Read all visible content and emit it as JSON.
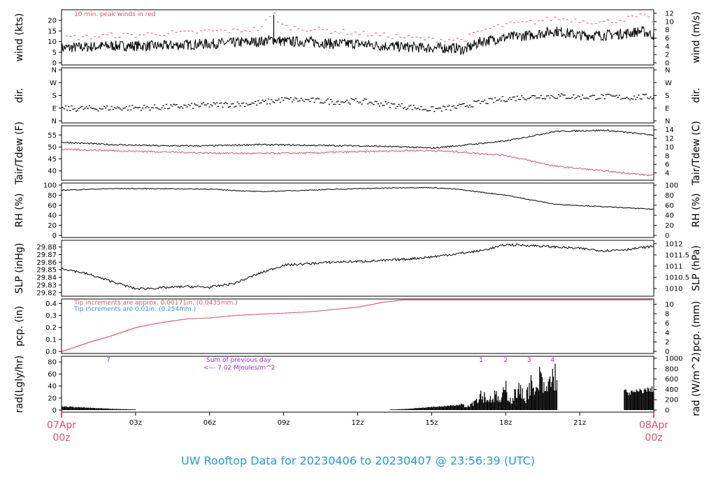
{
  "title": "UW Rooftop Data for 20230406  to  20230407 @ 23:56:39  (UTC)",
  "colors": {
    "red": "#df536b",
    "blue": "#2297e6",
    "purple": "#9933cc",
    "black": "#000000"
  },
  "time_axis": {
    "start_label": [
      "07Apr",
      "00z"
    ],
    "end_label": [
      "08Apr",
      "00z"
    ],
    "ticks": [
      "03z",
      "06z",
      "09z",
      "12z",
      "15z",
      "18z",
      "21z"
    ],
    "range_hours": [
      0,
      24
    ]
  },
  "chart_data": [
    {
      "type": "line",
      "panel": "wind",
      "ylabel_left": "wind (kts)",
      "ylabel_right": "wind (m/s)",
      "yticks_left": [
        "0",
        "5",
        "10",
        "15",
        "20"
      ],
      "yticks_right": [
        "0",
        "2",
        "4",
        "6",
        "8",
        "10",
        "12"
      ],
      "ylim": [
        0,
        24
      ],
      "right_scale_factor": 1.9438,
      "annotation": "10 min. peak winds in red",
      "x_hours": [
        0,
        1,
        2,
        3,
        4,
        5,
        6,
        7,
        8,
        8.6,
        9,
        10,
        11,
        12,
        13,
        14,
        15,
        16,
        16.3,
        17,
        18,
        19,
        20,
        21,
        22,
        23,
        23.5,
        24
      ],
      "series": [
        {
          "values": [
            7,
            7.5,
            8,
            8,
            8,
            8.5,
            9,
            9.5,
            10,
            11,
            10,
            10,
            9,
            9,
            8,
            7.5,
            7,
            7,
            6,
            10,
            12,
            13,
            15,
            13,
            13,
            14,
            15,
            13
          ]
        }
      ],
      "peaks": [
        12,
        12,
        13,
        13,
        14,
        14,
        15,
        15,
        16,
        23,
        17,
        16,
        15,
        14,
        13,
        12,
        11,
        11,
        11,
        15,
        18,
        19,
        21,
        20,
        19,
        21,
        22,
        20
      ]
    },
    {
      "type": "scatter",
      "panel": "dir",
      "ylabel_left": "dir.",
      "ylabel_right": "dir.",
      "yticks_left": [
        "N",
        "E",
        "S",
        "W",
        "N"
      ],
      "yticks_right": [
        "N",
        "E",
        "S",
        "W",
        "N"
      ],
      "ylim": [
        0,
        360
      ],
      "x_hours": [
        0,
        2,
        4,
        6,
        8,
        9,
        10,
        11,
        12,
        13,
        14,
        15,
        16,
        17,
        18,
        19,
        20,
        21,
        22,
        23,
        24
      ],
      "values": [
        85,
        90,
        95,
        110,
        125,
        150,
        145,
        135,
        140,
        120,
        100,
        80,
        95,
        130,
        155,
        170,
        175,
        168,
        170,
        165,
        170
      ]
    },
    {
      "type": "line",
      "panel": "temp",
      "ylabel_left": "Tair/Tdew (F)",
      "ylabel_right": "Tair/Tdew (C)",
      "yticks_left": [
        "40",
        "45",
        "50",
        "55"
      ],
      "yticks_right": [
        "4",
        "6",
        "8",
        "10",
        "12",
        "14"
      ],
      "ylim": [
        37,
        58
      ],
      "x_hours": [
        0,
        2,
        4,
        6,
        8,
        10,
        12,
        14,
        15,
        16,
        18,
        20,
        22,
        24
      ],
      "series": [
        {
          "name": "Tair",
          "color": "black",
          "values": [
            52,
            51,
            50.5,
            50.5,
            51,
            50.7,
            50.5,
            50,
            49.5,
            50.5,
            52.5,
            56.5,
            57,
            55
          ]
        },
        {
          "name": "Tdew",
          "color": "red",
          "values": [
            49,
            48.5,
            48,
            47.5,
            47.3,
            47.5,
            48,
            48.5,
            48.5,
            48,
            46.5,
            42,
            40,
            38
          ]
        }
      ]
    },
    {
      "type": "line",
      "panel": "rh",
      "ylabel_left": "RH (%)",
      "ylabel_right": "RH (%)",
      "yticks_left": [
        "0",
        "20",
        "40",
        "60",
        "80",
        "100"
      ],
      "yticks_right": [
        "0",
        "20",
        "40",
        "60",
        "80",
        "100"
      ],
      "ylim": [
        0,
        100
      ],
      "x_hours": [
        0,
        2,
        4,
        6,
        8,
        10,
        12,
        14,
        15,
        16,
        18,
        20,
        22,
        24
      ],
      "series": [
        {
          "values": [
            90,
            93,
            93,
            92,
            87,
            90,
            93,
            95,
            95,
            92,
            80,
            62,
            57,
            52
          ]
        }
      ]
    },
    {
      "type": "line",
      "panel": "slp",
      "ylabel_left": "SLP (inHg)",
      "ylabel_right": "SLP (hPa)",
      "yticks_left": [
        "29.82",
        "29.83",
        "29.84",
        "29.85",
        "29.86",
        "29.87",
        "29.88"
      ],
      "yticks_right": [
        "1010",
        "1010.5",
        "1011",
        "1011.5",
        "1012"
      ],
      "ylim": [
        29.818,
        29.886
      ],
      "x_hours": [
        0,
        1,
        2,
        3,
        4,
        5,
        6,
        7,
        8,
        9,
        10,
        11,
        12,
        13,
        14,
        15,
        16,
        17,
        18,
        19,
        20,
        21,
        22,
        23,
        24
      ],
      "series": [
        {
          "values": [
            29.852,
            29.845,
            29.835,
            29.825,
            29.826,
            29.828,
            29.827,
            29.832,
            29.845,
            29.856,
            29.858,
            29.86,
            29.861,
            29.862,
            29.864,
            29.867,
            29.871,
            29.875,
            29.883,
            29.882,
            29.88,
            29.878,
            29.875,
            29.877,
            29.881
          ]
        }
      ]
    },
    {
      "type": "line",
      "panel": "pcp",
      "ylabel_left": "pcp. (in)",
      "ylabel_right": "pcp. (mm)",
      "yticks_left": [
        "0.0",
        "0.1",
        "0.2",
        "0.3",
        "0.4"
      ],
      "yticks_right": [
        "0",
        "2",
        "4",
        "6",
        "8",
        "10"
      ],
      "ylim": [
        0,
        0.42
      ],
      "annotations": [
        "Tip increments are approx. 0.00171in. (0.0435mm.)",
        "Tip increments are 0.01in. (0.254mm.)"
      ],
      "x_hours": [
        0,
        1,
        2,
        3,
        4,
        5,
        6,
        7,
        8,
        9,
        10,
        11,
        12,
        13,
        13.8,
        14,
        24
      ],
      "series": [
        {
          "values": [
            0.0,
            0.07,
            0.13,
            0.2,
            0.24,
            0.27,
            0.28,
            0.3,
            0.31,
            0.32,
            0.33,
            0.35,
            0.37,
            0.41,
            0.43,
            0.43,
            0.43
          ]
        }
      ]
    },
    {
      "type": "bar",
      "panel": "rad",
      "ylabel_left": "rad(Lgly/hr)",
      "ylabel_right": "rad (W/m^2)",
      "yticks_left": [
        "0",
        "20",
        "40",
        "60",
        "80"
      ],
      "yticks_right": [
        "0",
        "200",
        "400",
        "600",
        "800",
        "1000"
      ],
      "ylim": [
        0,
        86
      ],
      "day_markers": [
        {
          "hour": 1.9,
          "label": "7"
        },
        {
          "hour": 17.0,
          "label": "1"
        },
        {
          "hour": 18.0,
          "label": "2"
        },
        {
          "hour": 18.95,
          "label": "3"
        },
        {
          "hour": 19.9,
          "label": "4"
        }
      ],
      "sum_text": [
        "Sum of previous day",
        "<--- 7.02 MJoules/m^2"
      ],
      "x_hours": [
        0,
        1,
        2,
        3,
        13.5,
        14,
        15,
        16,
        16.5,
        16.8,
        17,
        17.3,
        17.6,
        17.8,
        18,
        18.2,
        18.5,
        18.8,
        19,
        19.2,
        19.4,
        19.6,
        19.8,
        20,
        23,
        23.5,
        24
      ],
      "values": [
        6,
        4,
        2,
        1,
        1,
        2,
        5,
        8,
        12,
        25,
        40,
        25,
        35,
        20,
        55,
        22,
        50,
        30,
        65,
        35,
        80,
        40,
        72,
        85,
        28,
        32,
        35
      ]
    }
  ]
}
